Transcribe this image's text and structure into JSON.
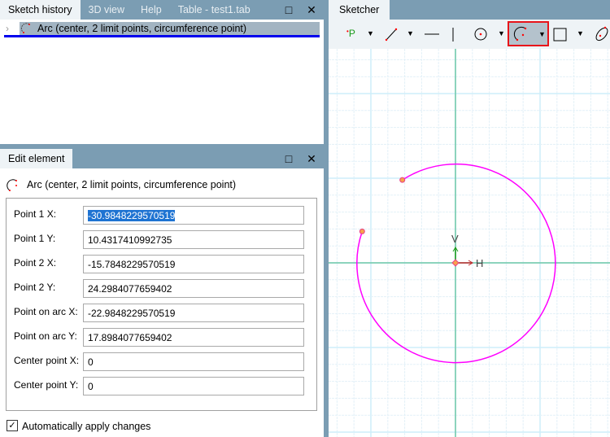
{
  "top_left_panel": {
    "tabs": [
      {
        "label": "Sketch history"
      },
      {
        "label": "3D view"
      },
      {
        "label": "Help"
      },
      {
        "label": "Table - test1.tab"
      }
    ],
    "history_items": [
      {
        "label": "Arc (center, 2 limit points, circumference point)",
        "icon": "arc-icon"
      }
    ]
  },
  "edit_panel": {
    "tab": "Edit element",
    "element_title": "Arc (center, 2 limit points, circumference point)",
    "fields": [
      {
        "label": "Point 1 X:",
        "value": "-30.9848229570519"
      },
      {
        "label": "Point 1 Y:",
        "value": "10.4317410992735"
      },
      {
        "label": "Point 2 X:",
        "value": "-15.7848229570519"
      },
      {
        "label": "Point 2 Y:",
        "value": "24.2984077659402"
      },
      {
        "label": "Point on arc X:",
        "value": "-22.9848229570519"
      },
      {
        "label": "Point on arc Y:",
        "value": "17.8984077659402"
      },
      {
        "label": "Center point X:",
        "value": "0"
      },
      {
        "label": "Center point Y:",
        "value": "0"
      }
    ],
    "auto_apply": {
      "label": "Automatically apply changes",
      "checked": true
    }
  },
  "sketcher": {
    "tab": "Sketcher",
    "point_label": "P",
    "axis_h": "H",
    "axis_v": "V",
    "colors": {
      "arc": "#ff00ff",
      "axis": "#6fc8a8",
      "highlight": "#e8141a"
    }
  }
}
